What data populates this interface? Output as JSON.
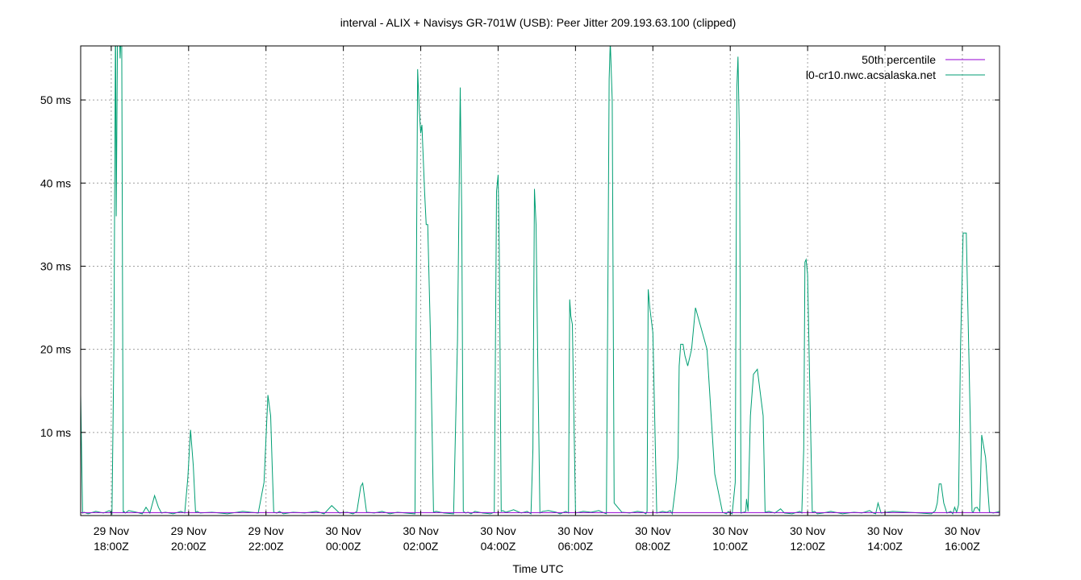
{
  "chart_data": {
    "type": "line",
    "title": "interval - ALIX + Navisys GR-701W (USB): Peer Jitter 209.193.63.100 (clipped)",
    "xlabel": "Time UTC",
    "ylabel": "",
    "x_unit": "hours since 29 Nov 17:00Z",
    "xlim": [
      16.81,
      40.56
    ],
    "ylim": [
      0,
      56.5
    ],
    "y_unit": "ms",
    "grid": true,
    "legend_position": "top-right",
    "x_ticks": [
      {
        "value": 17.6,
        "line1": "29 Nov",
        "line2": "18:00Z"
      },
      {
        "value": 19.6,
        "line1": "29 Nov",
        "line2": "20:00Z"
      },
      {
        "value": 21.6,
        "line1": "29 Nov",
        "line2": "22:00Z"
      },
      {
        "value": 23.6,
        "line1": "30 Nov",
        "line2": "00:00Z"
      },
      {
        "value": 25.6,
        "line1": "30 Nov",
        "line2": "02:00Z"
      },
      {
        "value": 27.6,
        "line1": "30 Nov",
        "line2": "04:00Z"
      },
      {
        "value": 29.6,
        "line1": "30 Nov",
        "line2": "06:00Z"
      },
      {
        "value": 31.6,
        "line1": "30 Nov",
        "line2": "08:00Z"
      },
      {
        "value": 33.6,
        "line1": "30 Nov",
        "line2": "10:00Z"
      },
      {
        "value": 35.6,
        "line1": "30 Nov",
        "line2": "12:00Z"
      },
      {
        "value": 37.6,
        "line1": "30 Nov",
        "line2": "14:00Z"
      },
      {
        "value": 39.6,
        "line1": "30 Nov",
        "line2": "16:00Z"
      }
    ],
    "y_ticks": [
      {
        "value": 10,
        "label": "10 ms"
      },
      {
        "value": 20,
        "label": "20 ms"
      },
      {
        "value": 30,
        "label": "30 ms"
      },
      {
        "value": 40,
        "label": "40 ms"
      },
      {
        "value": 50,
        "label": "50 ms"
      }
    ],
    "series": [
      {
        "name": "50th percentile",
        "color": "#9400d3",
        "x": [
          16.81,
          40.56
        ],
        "y": [
          0.35,
          0.35
        ]
      },
      {
        "name": "l0-cr10.nwc.acsalaska.net",
        "color": "#009e73",
        "x": [
          16.81,
          16.86,
          16.9,
          17.0,
          17.2,
          17.4,
          17.55,
          17.62,
          17.67,
          17.71,
          17.73,
          17.75,
          17.77,
          17.8,
          17.83,
          17.87,
          17.91,
          17.93,
          17.96,
          18.05,
          18.25,
          18.4,
          18.5,
          18.6,
          18.72,
          18.82,
          18.9,
          19.0,
          19.2,
          19.4,
          19.5,
          19.58,
          19.65,
          19.72,
          19.78,
          19.82,
          19.9,
          20.2,
          20.6,
          21.0,
          21.4,
          21.55,
          21.65,
          21.72,
          21.76,
          21.8,
          21.88,
          21.95,
          22.05,
          22.3,
          22.6,
          22.9,
          23.1,
          23.3,
          23.5,
          23.7,
          23.85,
          23.95,
          24.05,
          24.1,
          24.2,
          24.4,
          24.6,
          24.8,
          25.0,
          25.2,
          25.45,
          25.52,
          25.56,
          25.6,
          25.63,
          25.7,
          25.74,
          25.78,
          25.85,
          25.93,
          26.0,
          26.2,
          26.45,
          26.55,
          26.62,
          26.66,
          26.7,
          26.76,
          26.82,
          26.9,
          27.0,
          27.2,
          27.4,
          27.5,
          27.56,
          27.6,
          27.63,
          27.68,
          27.72,
          27.8,
          28.0,
          28.2,
          28.35,
          28.45,
          28.5,
          28.54,
          28.58,
          28.62,
          28.68,
          28.75,
          28.9,
          29.1,
          29.2,
          29.35,
          29.42,
          29.45,
          29.48,
          29.52,
          29.6,
          29.8,
          30.0,
          30.2,
          30.35,
          30.4,
          30.44,
          30.47,
          30.5,
          30.55,
          30.6,
          30.8,
          31.0,
          31.2,
          31.35,
          31.42,
          31.45,
          31.48,
          31.52,
          31.6,
          31.7,
          31.85,
          31.95,
          32.05,
          32.1,
          32.2,
          32.25,
          32.28,
          32.32,
          32.38,
          32.43,
          32.5,
          32.6,
          32.7,
          33.0,
          33.2,
          33.4,
          33.5,
          33.55,
          33.6,
          33.65,
          33.73,
          33.77,
          33.8,
          33.84,
          33.88,
          33.95,
          34.0,
          34.02,
          34.06,
          34.12,
          34.2,
          34.3,
          34.45,
          34.5,
          34.6,
          34.75,
          34.9,
          35.0,
          35.2,
          35.4,
          35.45,
          35.5,
          35.53,
          35.56,
          35.6,
          35.65,
          35.72,
          35.78,
          35.85,
          36.0,
          36.2,
          36.5,
          36.8,
          37.0,
          37.2,
          37.3,
          37.36,
          37.42,
          37.5,
          37.8,
          38.2,
          38.5,
          38.8,
          38.9,
          38.95,
          39.0,
          39.05,
          39.12,
          39.2,
          39.3,
          39.35,
          39.4,
          39.45,
          39.5,
          39.55,
          39.62,
          39.7,
          39.8,
          39.85,
          39.88,
          39.92,
          39.98,
          40.05,
          40.1,
          40.2,
          40.3,
          40.4,
          40.56
        ],
        "y": [
          14.5,
          0.3,
          0.4,
          0.2,
          0.5,
          0.3,
          0.6,
          0.2,
          20,
          60,
          36,
          50,
          62,
          60,
          55,
          60,
          0.4,
          0.5,
          0.3,
          0.6,
          0.4,
          0.2,
          1.0,
          0.3,
          2.4,
          1.0,
          0.3,
          0.4,
          0.2,
          0.5,
          0.3,
          4.5,
          10.3,
          6.0,
          0.4,
          0.5,
          0.3,
          0.4,
          0.2,
          0.5,
          0.3,
          4.0,
          14.5,
          12.0,
          6.0,
          0.4,
          0.3,
          0.5,
          0.2,
          0.4,
          0.3,
          0.5,
          0.2,
          1.2,
          0.3,
          0.4,
          0.2,
          0.5,
          3.5,
          3.9,
          0.4,
          0.3,
          0.5,
          0.2,
          0.4,
          0.3,
          0.2,
          53.7,
          49.0,
          46.0,
          47.0,
          39.0,
          35.0,
          35.0,
          22.0,
          0.4,
          0.5,
          0.3,
          0.2,
          21.0,
          51.5,
          36.0,
          0.5,
          0.3,
          0.4,
          0.2,
          0.5,
          0.3,
          0.2,
          0.4,
          39.0,
          41.0,
          32.0,
          0.5,
          0.6,
          0.4,
          0.7,
          0.3,
          0.5,
          0.2,
          8.0,
          39.3,
          35.0,
          20.0,
          0.3,
          0.5,
          0.6,
          0.4,
          0.2,
          0.5,
          0.3,
          26.0,
          24.0,
          23.0,
          0.3,
          0.5,
          0.4,
          0.6,
          0.3,
          0.2,
          30.0,
          52.5,
          57.0,
          50.0,
          1.5,
          0.4,
          0.3,
          0.5,
          0.4,
          0.2,
          0.5,
          27.2,
          25.0,
          22.0,
          0.3,
          0.5,
          0.4,
          0.6,
          0.2,
          4.0,
          7.0,
          18.0,
          20.6,
          20.6,
          19.2,
          18.0,
          20.0,
          25.0,
          20.0,
          5.0,
          0.4,
          0.2,
          0.5,
          0.3,
          0.2,
          4.0,
          51.5,
          55.2,
          45.0,
          0.3,
          0.4,
          0.5,
          2.0,
          0.5,
          12.0,
          17.0,
          17.6,
          12.0,
          0.4,
          0.5,
          0.3,
          0.8,
          0.3,
          0.2,
          0.5,
          0.3,
          8.0,
          30.5,
          30.8,
          29.0,
          17.0,
          0.4,
          0.5,
          0.2,
          0.3,
          0.5,
          0.2,
          0.4,
          0.3,
          0.6,
          0.3,
          0.2,
          1.5,
          0.3,
          0.5,
          0.4,
          0.3,
          0.2,
          0.6,
          1.5,
          3.8,
          3.8,
          1.5,
          0.3,
          0.5,
          0.2,
          1.0,
          0.4,
          1.3,
          20.0,
          34.0,
          34.0,
          12.0,
          0.5,
          0.4,
          0.9,
          1.0,
          0.5,
          9.7,
          7.0,
          0.4,
          0.3,
          0.5
        ]
      }
    ]
  }
}
